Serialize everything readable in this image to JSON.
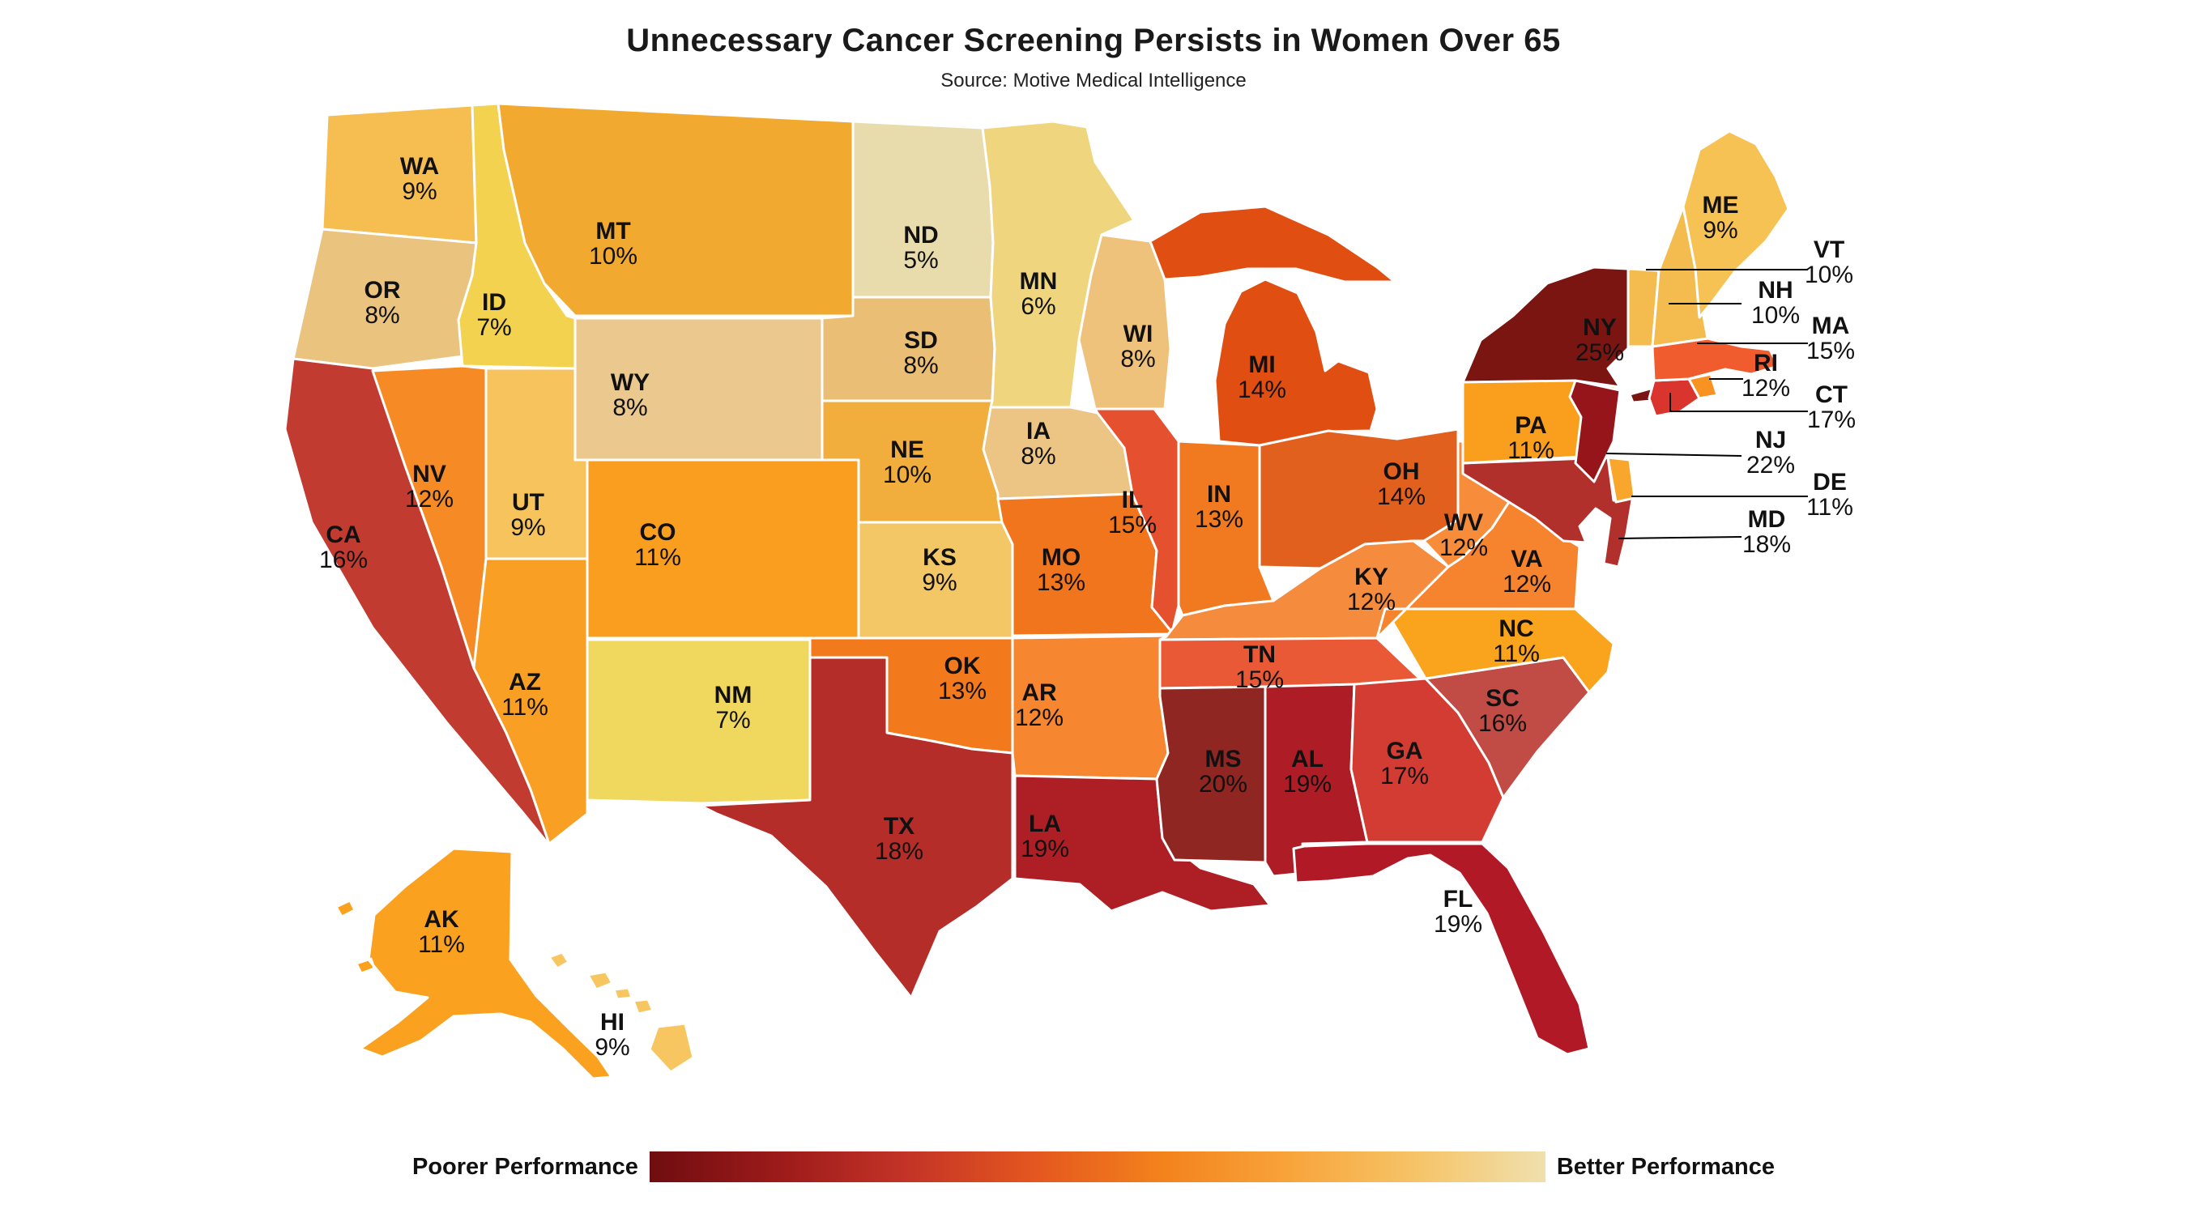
{
  "chart_data": {
    "type": "choropleth",
    "title": "Unnecessary Cancer Screening Persists in Women Over 65",
    "source": "Source: Motive Medical Intelligence",
    "unit": "%",
    "legend": {
      "left_label": "Poorer Performance",
      "right_label": "Better Performance",
      "gradient": [
        "#6F0D10",
        "#9C1A1A",
        "#C33327",
        "#E4561F",
        "#F3821C",
        "#F8A43B",
        "#F6C468",
        "#EFE0AE"
      ]
    },
    "states": [
      {
        "abbr": "WA",
        "value": 9,
        "color": "#F6BD51"
      },
      {
        "abbr": "OR",
        "value": 8,
        "color": "#EAC37F"
      },
      {
        "abbr": "CA",
        "value": 16,
        "color": "#C23B31"
      },
      {
        "abbr": "ID",
        "value": 7,
        "color": "#F2D24E"
      },
      {
        "abbr": "NV",
        "value": 12,
        "color": "#F68B26"
      },
      {
        "abbr": "UT",
        "value": 9,
        "color": "#F6C35C"
      },
      {
        "abbr": "AZ",
        "value": 11,
        "color": "#F9A024"
      },
      {
        "abbr": "MT",
        "value": 10,
        "color": "#F1A930"
      },
      {
        "abbr": "WY",
        "value": 8,
        "color": "#EBC88E"
      },
      {
        "abbr": "CO",
        "value": 11,
        "color": "#FA9E20"
      },
      {
        "abbr": "NM",
        "value": 7,
        "color": "#F0D75E"
      },
      {
        "abbr": "ND",
        "value": 5,
        "color": "#E8DCAC"
      },
      {
        "abbr": "SD",
        "value": 8,
        "color": "#EBBE75"
      },
      {
        "abbr": "NE",
        "value": 10,
        "color": "#F1AE3D"
      },
      {
        "abbr": "KS",
        "value": 9,
        "color": "#F4C766"
      },
      {
        "abbr": "OK",
        "value": 13,
        "color": "#F3791D"
      },
      {
        "abbr": "TX",
        "value": 18,
        "color": "#B42D28"
      },
      {
        "abbr": "MN",
        "value": 6,
        "color": "#EFD67E"
      },
      {
        "abbr": "IA",
        "value": 8,
        "color": "#ECC584"
      },
      {
        "abbr": "MO",
        "value": 13,
        "color": "#F1751C"
      },
      {
        "abbr": "AR",
        "value": 12,
        "color": "#F6862F"
      },
      {
        "abbr": "LA",
        "value": 19,
        "color": "#AE1F25"
      },
      {
        "abbr": "WI",
        "value": 8,
        "color": "#EFC27B"
      },
      {
        "abbr": "IL",
        "value": 15,
        "color": "#E5502E"
      },
      {
        "abbr": "MI",
        "value": 14,
        "color": "#E04E12"
      },
      {
        "abbr": "IN",
        "value": 13,
        "color": "#F17A21"
      },
      {
        "abbr": "OH",
        "value": 14,
        "color": "#E2601E"
      },
      {
        "abbr": "KY",
        "value": 12,
        "color": "#F58B3C"
      },
      {
        "abbr": "TN",
        "value": 15,
        "color": "#E95935"
      },
      {
        "abbr": "MS",
        "value": 20,
        "color": "#8F2622"
      },
      {
        "abbr": "AL",
        "value": 19,
        "color": "#AE1C26"
      },
      {
        "abbr": "GA",
        "value": 17,
        "color": "#D23C33"
      },
      {
        "abbr": "FL",
        "value": 19,
        "color": "#B11926"
      },
      {
        "abbr": "SC",
        "value": 16,
        "color": "#C14B45"
      },
      {
        "abbr": "NC",
        "value": 11,
        "color": "#FAA31C"
      },
      {
        "abbr": "VA",
        "value": 12,
        "color": "#F6842E"
      },
      {
        "abbr": "WV",
        "value": 12,
        "color": "#F78D3B"
      },
      {
        "abbr": "MD",
        "value": 18,
        "color": "#B2302B"
      },
      {
        "abbr": "DE",
        "value": 11,
        "color": "#F8A62C"
      },
      {
        "abbr": "PA",
        "value": 11,
        "color": "#FA9E1D"
      },
      {
        "abbr": "NJ",
        "value": 22,
        "color": "#96151A"
      },
      {
        "abbr": "NY",
        "value": 25,
        "color": "#7A1512",
        "label_color": "#FFFFFF"
      },
      {
        "abbr": "CT",
        "value": 17,
        "color": "#D9342D"
      },
      {
        "abbr": "RI",
        "value": 12,
        "color": "#F89322"
      },
      {
        "abbr": "MA",
        "value": 15,
        "color": "#F05C2E"
      },
      {
        "abbr": "VT",
        "value": 10,
        "color": "#F4BC4E"
      },
      {
        "abbr": "NH",
        "value": 10,
        "color": "#F4BC4E"
      },
      {
        "abbr": "ME",
        "value": 9,
        "color": "#F7C254"
      },
      {
        "abbr": "AK",
        "value": 11,
        "color": "#FAA21F"
      },
      {
        "abbr": "HI",
        "value": 9,
        "color": "#F8C661"
      }
    ]
  }
}
